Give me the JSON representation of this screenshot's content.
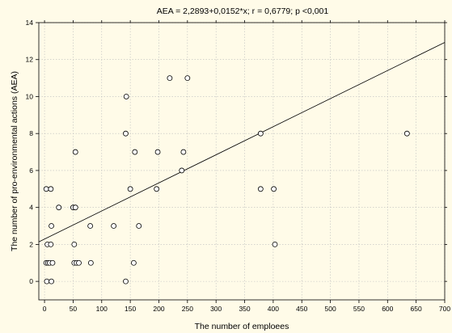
{
  "chart_data": {
    "type": "scatter",
    "title": "AEA = 2,2893+0,0152*x; r = 0,6779; p <0,001",
    "xlabel": "The number of emploees",
    "ylabel": "The number of pro-environmental actions (AEA)",
    "xlim": [
      -10,
      700
    ],
    "ylim": [
      -1,
      14
    ],
    "xticks": [
      0,
      50,
      100,
      150,
      200,
      250,
      300,
      350,
      400,
      450,
      500,
      550,
      600,
      650,
      700
    ],
    "yticks": [
      0,
      2,
      4,
      6,
      8,
      10,
      12,
      14
    ],
    "xtick_labels": [
      "0",
      "50",
      "100",
      "150",
      "200",
      "250",
      "300",
      "350",
      "400",
      "450",
      "500",
      "550",
      "600",
      "650",
      "700"
    ],
    "ytick_labels": [
      "0",
      "2",
      "4",
      "6",
      "8",
      "10",
      "12",
      "14"
    ],
    "grid": true,
    "regression": {
      "intercept": 2.2893,
      "slope": 0.0152
    },
    "points": [
      {
        "x": 3,
        "y": 5
      },
      {
        "x": 11,
        "y": 5
      },
      {
        "x": 25,
        "y": 4
      },
      {
        "x": 50,
        "y": 4
      },
      {
        "x": 54,
        "y": 4
      },
      {
        "x": 54,
        "y": 7
      },
      {
        "x": 12,
        "y": 3
      },
      {
        "x": 5,
        "y": 2
      },
      {
        "x": 11,
        "y": 2
      },
      {
        "x": 3,
        "y": 1
      },
      {
        "x": 6,
        "y": 1
      },
      {
        "x": 9,
        "y": 1
      },
      {
        "x": 14,
        "y": 1
      },
      {
        "x": 52,
        "y": 1
      },
      {
        "x": 56,
        "y": 1
      },
      {
        "x": 60,
        "y": 1
      },
      {
        "x": 4,
        "y": 0
      },
      {
        "x": 12,
        "y": 0
      },
      {
        "x": 52,
        "y": 2
      },
      {
        "x": 80,
        "y": 3
      },
      {
        "x": 81,
        "y": 1
      },
      {
        "x": 121,
        "y": 3
      },
      {
        "x": 142,
        "y": 0
      },
      {
        "x": 142,
        "y": 8
      },
      {
        "x": 143,
        "y": 10
      },
      {
        "x": 150,
        "y": 5
      },
      {
        "x": 156,
        "y": 1
      },
      {
        "x": 158,
        "y": 7
      },
      {
        "x": 165,
        "y": 3
      },
      {
        "x": 196,
        "y": 5
      },
      {
        "x": 198,
        "y": 7
      },
      {
        "x": 219,
        "y": 11
      },
      {
        "x": 240,
        "y": 6
      },
      {
        "x": 243,
        "y": 7
      },
      {
        "x": 250,
        "y": 11
      },
      {
        "x": 378,
        "y": 8
      },
      {
        "x": 378,
        "y": 5
      },
      {
        "x": 401,
        "y": 5
      },
      {
        "x": 403,
        "y": 2
      },
      {
        "x": 634,
        "y": 8
      }
    ]
  }
}
